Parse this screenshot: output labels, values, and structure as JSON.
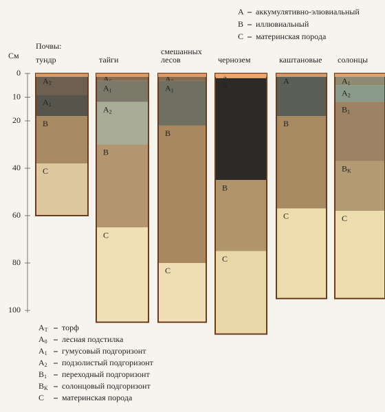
{
  "legend_top": [
    {
      "key": "A",
      "text": "аккумулятивно-элювиальный"
    },
    {
      "key": "B",
      "text": "иллювиальный"
    },
    {
      "key": "C",
      "text": "материнская порода"
    }
  ],
  "axis": {
    "unit": "См",
    "ticks": [
      0,
      10,
      20,
      40,
      60,
      80,
      100
    ]
  },
  "soils_label": "Почвы:",
  "profiles": [
    {
      "name": [
        "тундр"
      ],
      "horizons": [
        {
          "label": "A",
          "sub": "T",
          "top": 0,
          "bottom": 9,
          "color": "#6e6050"
        },
        {
          "label": "A",
          "sub": "1",
          "top": 9,
          "bottom": 18,
          "color": "#56554c"
        },
        {
          "label": "B",
          "top": 18,
          "bottom": 38,
          "color": "#a88a62"
        },
        {
          "label": "C",
          "top": 38,
          "bottom": 60,
          "color": "#dcc79e"
        }
      ]
    },
    {
      "name": [
        "тайги"
      ],
      "horizons": [
        {
          "label": "A",
          "sub": "0",
          "top": 0,
          "bottom": 3,
          "color": "#8a6a4a"
        },
        {
          "label": "A",
          "sub": "1",
          "top": 3,
          "bottom": 12,
          "color": "#7b7a6a"
        },
        {
          "label": "A",
          "sub": "2",
          "top": 12,
          "bottom": 30,
          "color": "#a9ad98"
        },
        {
          "label": "B",
          "top": 30,
          "bottom": 65,
          "color": "#b39570"
        },
        {
          "label": "C",
          "top": 65,
          "bottom": 105,
          "color": "#efe0b6"
        }
      ]
    },
    {
      "name": [
        "смешанных",
        "лесов"
      ],
      "horizons": [
        {
          "label": "A",
          "sub": "0",
          "top": 0,
          "bottom": 3,
          "color": "#8a6a4a"
        },
        {
          "label": "A",
          "sub": "1",
          "top": 3,
          "bottom": 22,
          "color": "#6f6f62"
        },
        {
          "label": "B",
          "top": 22,
          "bottom": 80,
          "color": "#a9875f"
        },
        {
          "label": "C",
          "top": 80,
          "bottom": 105,
          "color": "#f0dfb5"
        }
      ]
    },
    {
      "name": [
        "чернозем"
      ],
      "horizons": [
        {
          "label": "A",
          "sub": "0",
          "top": 0,
          "bottom": 2,
          "color": "#e9a76c"
        },
        {
          "label": "A",
          "top": 2,
          "bottom": 45,
          "color": "#2b2a28"
        },
        {
          "label": "B",
          "top": 45,
          "bottom": 75,
          "color": "#b0946a"
        },
        {
          "label": "C",
          "top": 75,
          "bottom": 110,
          "color": "#ead7a8"
        }
      ]
    },
    {
      "name": [
        "каштановые"
      ],
      "horizons": [
        {
          "label": "A",
          "top": 0,
          "bottom": 18,
          "color": "#5b5f56"
        },
        {
          "label": "B",
          "top": 18,
          "bottom": 57,
          "color": "#a88a60"
        },
        {
          "label": "C",
          "top": 57,
          "bottom": 95,
          "color": "#ecdcae"
        }
      ]
    },
    {
      "name": [
        "солонцы"
      ],
      "horizons": [
        {
          "label": "A",
          "sub": "1",
          "top": 0,
          "bottom": 5,
          "color": "#8c8a70"
        },
        {
          "label": "A",
          "sub": "2",
          "top": 5,
          "bottom": 12,
          "color": "#8a9a88"
        },
        {
          "label": "B",
          "sub": "1",
          "top": 12,
          "bottom": 37,
          "color": "#9a8262"
        },
        {
          "label": "B",
          "sub": "K",
          "top": 37,
          "bottom": 58,
          "color": "#b39b74"
        },
        {
          "label": "C",
          "top": 58,
          "bottom": 95,
          "color": "#ecdcae"
        }
      ]
    }
  ],
  "legend_bottom": [
    {
      "key": "A",
      "sub": "T",
      "text": "торф"
    },
    {
      "key": "A",
      "sub": "0",
      "text": "лесная подстилка"
    },
    {
      "key": "A",
      "sub": "1",
      "text": "гумусовый подгоризонт"
    },
    {
      "key": "A",
      "sub": "2",
      "text": "подзолистый подгоризонт"
    },
    {
      "key": "B",
      "sub": "1",
      "text": "переходный подгоризонт"
    },
    {
      "key": "B",
      "sub": "K",
      "text": "солонцовый подгоризонт"
    },
    {
      "key": "C",
      "text": "материнская порода"
    }
  ]
}
